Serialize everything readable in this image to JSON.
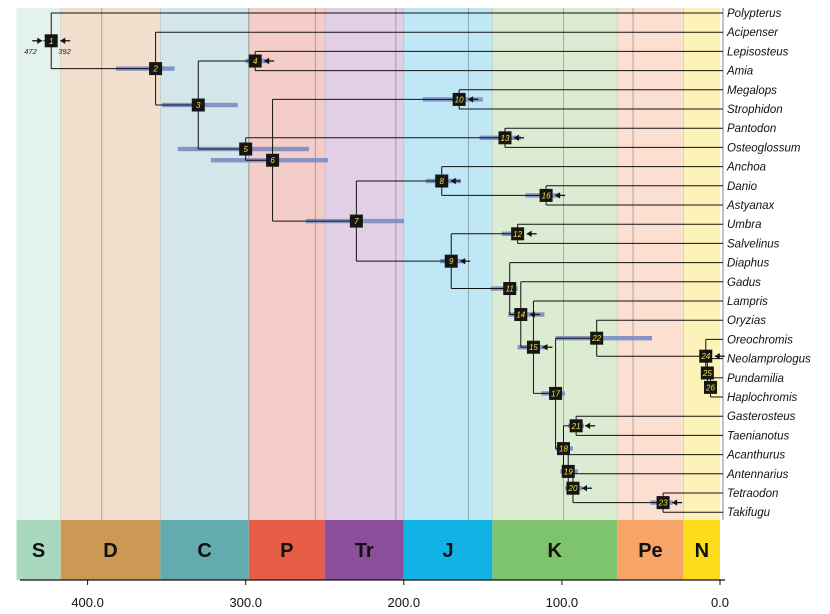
{
  "chart_data": {
    "type": "time-calibrated phylogenetic tree",
    "x_axis": {
      "ticks": [
        400,
        300,
        200,
        100,
        0
      ],
      "tick_labels": [
        "400.0",
        "300.0",
        "200.0",
        "100.0",
        "0.0"
      ],
      "range_ma": [
        445,
        0
      ]
    },
    "periods": [
      {
        "label": "S",
        "start": 445,
        "end": 417,
        "band_color": "#e3f3ec",
        "bar_color": "#a8d8bd"
      },
      {
        "label": "D",
        "start": 417,
        "end": 354,
        "band_color": "#f1decc",
        "bar_color": "#cc9955"
      },
      {
        "label": "C",
        "start": 354,
        "end": 298,
        "band_color": "#d3e6e9",
        "bar_color": "#63abae"
      },
      {
        "label": "P",
        "start": 298,
        "end": 250,
        "band_color": "#f5cdc8",
        "bar_color": "#e45d44"
      },
      {
        "label": "Tr",
        "start": 250,
        "end": 200,
        "band_color": "#e3cfe5",
        "bar_color": "#8a4e9a"
      },
      {
        "label": "J",
        "start": 200,
        "end": 144,
        "band_color": "#bfe7f6",
        "bar_color": "#10b3e3"
      },
      {
        "label": "K",
        "start": 144,
        "end": 65,
        "band_color": "#dbecd3",
        "bar_color": "#7ec46c"
      },
      {
        "label": "Pe",
        "start": 65,
        "end": 23,
        "band_color": "#fbdfd0",
        "bar_color": "#f7a468"
      },
      {
        "label": "N",
        "start": 23,
        "end": 0,
        "band_color": "#fdf2b8",
        "bar_color": "#fddc1c"
      }
    ],
    "internal_epoch_lines": [
      391,
      298,
      256,
      205,
      159,
      99,
      55
    ],
    "taxa": [
      "Polypterus",
      "Acipenser",
      "Lepisosteus",
      "Amia",
      "Megalops",
      "Strophidon",
      "Pantodon",
      "Osteoglossum",
      "Anchoa",
      "Danio",
      "Astyanax",
      "Umbra",
      "Salvelinus",
      "Diaphus",
      "Gadus",
      "Lampris",
      "Oryzias",
      "Oreochromis",
      "Neolamprologus",
      "Pundamilia",
      "Haplochromis",
      "Gasterosteus",
      "Taenianotus",
      "Acanthurus",
      "Antennarius",
      "Tetraodon",
      "Takifugu"
    ],
    "nodes": [
      {
        "id": "1",
        "age": 423,
        "children": [
          "Polypterus",
          "n2"
        ]
      },
      {
        "id": "2",
        "age": 357,
        "ci": [
          382,
          345
        ],
        "children": [
          "Acipenser",
          "n3"
        ]
      },
      {
        "id": "3",
        "age": 330,
        "ci": [
          353,
          305
        ],
        "children": [
          "n4",
          "n5"
        ]
      },
      {
        "id": "4",
        "age": 294,
        "ci": [
          300,
          286
        ],
        "children": [
          "Lepisosteus",
          "Amia"
        ]
      },
      {
        "id": "5",
        "age": 300,
        "ci": [
          343,
          260
        ],
        "children": [
          "n6",
          "n13"
        ]
      },
      {
        "id": "6",
        "age": 283,
        "ci": [
          322,
          248
        ],
        "children": [
          "n10",
          "n7"
        ]
      },
      {
        "id": "7",
        "age": 230,
        "ci": [
          262,
          200
        ],
        "children": [
          "n8",
          "n9"
        ]
      },
      {
        "id": "8",
        "age": 176,
        "ci": [
          186,
          164
        ],
        "children": [
          "Anchoa",
          "n16"
        ]
      },
      {
        "id": "9",
        "age": 170,
        "ci": [
          177,
          161
        ],
        "children": [
          "n12",
          "n11"
        ]
      },
      {
        "id": "10",
        "age": 165,
        "ci": [
          188,
          150
        ],
        "children": [
          "Megalops",
          "Strophidon"
        ]
      },
      {
        "id": "11",
        "age": 133,
        "ci": [
          145,
          128
        ],
        "children": [
          "Diaphus",
          "n14"
        ]
      },
      {
        "id": "12",
        "age": 128,
        "ci": [
          138,
          125
        ],
        "children": [
          "Umbra",
          "Salvelinus"
        ]
      },
      {
        "id": "13",
        "age": 136,
        "ci": [
          152,
          126
        ],
        "children": [
          "Pantodon",
          "Osteoglossum"
        ]
      },
      {
        "id": "14",
        "age": 126,
        "ci": [
          134,
          111
        ],
        "children": [
          "Gadus",
          "n15"
        ]
      },
      {
        "id": "15",
        "age": 118,
        "ci": [
          128,
          109
        ],
        "children": [
          "Lampris",
          "n17"
        ]
      },
      {
        "id": "16",
        "age": 110,
        "ci": [
          123,
          101
        ],
        "children": [
          "Danio",
          "Astyanax"
        ]
      },
      {
        "id": "17",
        "age": 104,
        "ci": [
          113,
          98
        ],
        "children": [
          "n22",
          "n18"
        ]
      },
      {
        "id": "18",
        "age": 99,
        "ci": [
          104,
          93
        ],
        "children": [
          "n21",
          "n19"
        ]
      },
      {
        "id": "19",
        "age": 96,
        "ci": [
          101,
          90
        ],
        "children": [
          "Acanthurus",
          "n20"
        ]
      },
      {
        "id": "20",
        "age": 93,
        "ci": [
          98,
          87
        ],
        "children": [
          "Antennarius",
          "n23"
        ]
      },
      {
        "id": "21",
        "age": 91,
        "ci": [
          96,
          86
        ],
        "children": [
          "Gasterosteus",
          "Taenianotus"
        ]
      },
      {
        "id": "22",
        "age": 78,
        "ci": [
          104,
          43
        ],
        "children": [
          "Oryzias",
          "n24"
        ]
      },
      {
        "id": "23",
        "age": 36,
        "ci": [
          44,
          30
        ],
        "children": [
          "Tetraodon",
          "Takifugu"
        ]
      },
      {
        "id": "24",
        "age": 9,
        "ci": [
          12,
          6
        ],
        "children": [
          "Oreochromis",
          "n25"
        ]
      },
      {
        "id": "25",
        "age": 8,
        "children": [
          "Neolamprologus",
          "n26"
        ]
      },
      {
        "id": "26",
        "age": 6,
        "children": [
          "Pundamilia",
          "Haplochromis"
        ]
      }
    ],
    "calibrated_nodes": [
      "4",
      "9",
      "10",
      "12",
      "13",
      "14",
      "15",
      "16",
      "21",
      "20",
      "23",
      "8",
      "24"
    ],
    "root_bounds": {
      "lower": "392",
      "upper": "472"
    }
  }
}
